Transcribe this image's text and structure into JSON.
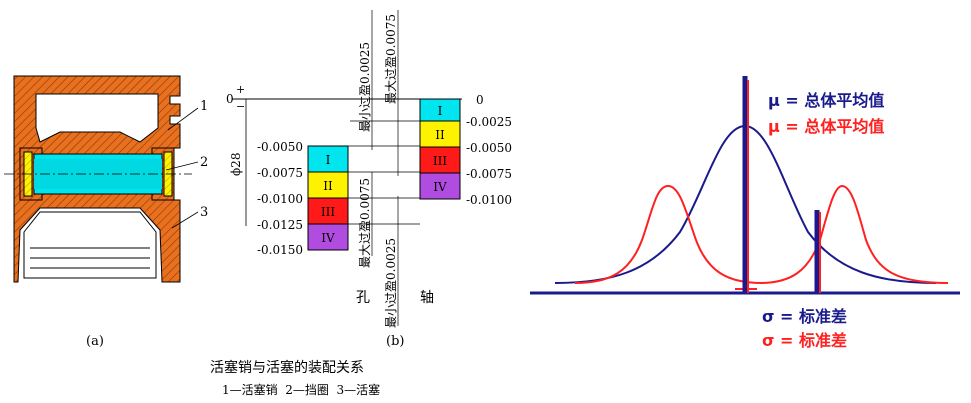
{
  "figure_a": {
    "label": "(a)",
    "callouts": [
      "1",
      "2",
      "3"
    ]
  },
  "figure_b": {
    "label": "(b)",
    "zero_mark": "0",
    "plus_sign": "+",
    "minus_sign": "−",
    "diameter": "ϕ28",
    "hole_label": "孔",
    "shaft_label": "轴",
    "hole_ticks": [
      "-0.0050",
      "-0.0075",
      "-0.0100",
      "-0.0125",
      "-0.0150"
    ],
    "shaft_ticks": [
      "0",
      "-0.0025",
      "-0.0050",
      "-0.0075",
      "-0.0100"
    ],
    "hole_groups": [
      "I",
      "II",
      "III",
      "IV"
    ],
    "shaft_groups": [
      "I",
      "II",
      "III",
      "IV"
    ],
    "min_interference_top": "最小过盈0.0025",
    "max_interference_top": "最大过盈0.0075",
    "max_interference_bottom": "最大过盈0.0075",
    "min_interference_bottom": "最小过盈0.0025"
  },
  "caption": {
    "title": "活塞销与活塞的装配关系",
    "legend": "1—活塞销  2—挡圈  3—活塞"
  },
  "distribution": {
    "mu_blue": "μ = 总体平均值",
    "mu_red": "μ = 总体平均值",
    "sigma_blue": "σ = 标准差",
    "sigma_red": "σ = 标准差"
  },
  "colors": {
    "piston": "#E8701E",
    "pin": "#00E5EE",
    "group_I": "#00E5EE",
    "group_II": "#FFF200",
    "group_III": "#FF1A1A",
    "group_IV": "#B04CE0",
    "curve_blue": "#1A1A8C",
    "curve_red": "#FF2020"
  }
}
